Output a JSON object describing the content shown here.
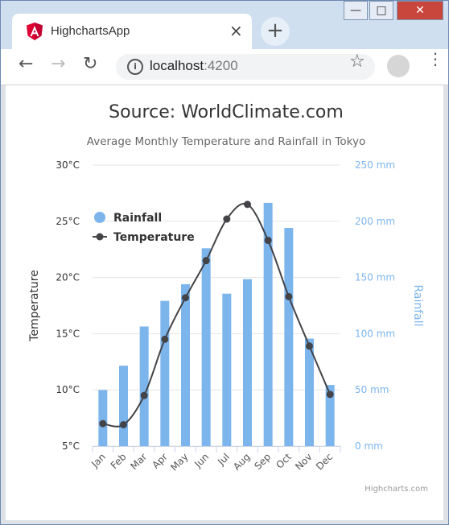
{
  "browser": {
    "tab_title": "HighchartsApp",
    "tab_close": "×",
    "new_tab": "+",
    "url_host": "localhost",
    "url_port": ":4200",
    "info": "i",
    "back": "←",
    "forward": "→",
    "reload": "↻",
    "star": "☆",
    "menu": "⋮",
    "win_min": "—",
    "win_max": "□",
    "win_close": "✕"
  },
  "chart_data": {
    "type": "bar",
    "title": "Source: WorldClimate.com",
    "subtitle": "Average Monthly Temperature and Rainfall in Tokyo",
    "categories": [
      "Jan",
      "Feb",
      "Mar",
      "Apr",
      "May",
      "Jun",
      "Jul",
      "Aug",
      "Sep",
      "Oct",
      "Nov",
      "Dec"
    ],
    "series": [
      {
        "name": "Rainfall",
        "chart_type": "column",
        "axis": "right",
        "color": "#7cb5ec",
        "values": [
          49.9,
          71.5,
          106.4,
          129.2,
          144.0,
          176.0,
          135.6,
          148.5,
          216.4,
          194.1,
          95.6,
          54.4
        ]
      },
      {
        "name": "Temperature",
        "chart_type": "spline",
        "axis": "left",
        "color": "#434348",
        "values": [
          7.0,
          6.9,
          9.5,
          14.5,
          18.2,
          21.5,
          25.2,
          26.5,
          23.3,
          18.3,
          13.9,
          9.6
        ]
      }
    ],
    "y_left": {
      "label": "Temperature",
      "ticks": [
        "5°C",
        "10°C",
        "15°C",
        "20°C",
        "25°C",
        "30°C"
      ],
      "range": [
        5,
        30
      ]
    },
    "y_right": {
      "label": "Rainfall",
      "ticks": [
        "0 mm",
        "50 mm",
        "100 mm",
        "150 mm",
        "200 mm",
        "250 mm"
      ],
      "range": [
        0,
        250
      ],
      "color": "#7cb5ec"
    },
    "legend": {
      "placement": "top-left-inside",
      "items": [
        "Rainfall",
        "Temperature"
      ]
    },
    "grid": true,
    "credits": "Highcharts.com"
  }
}
